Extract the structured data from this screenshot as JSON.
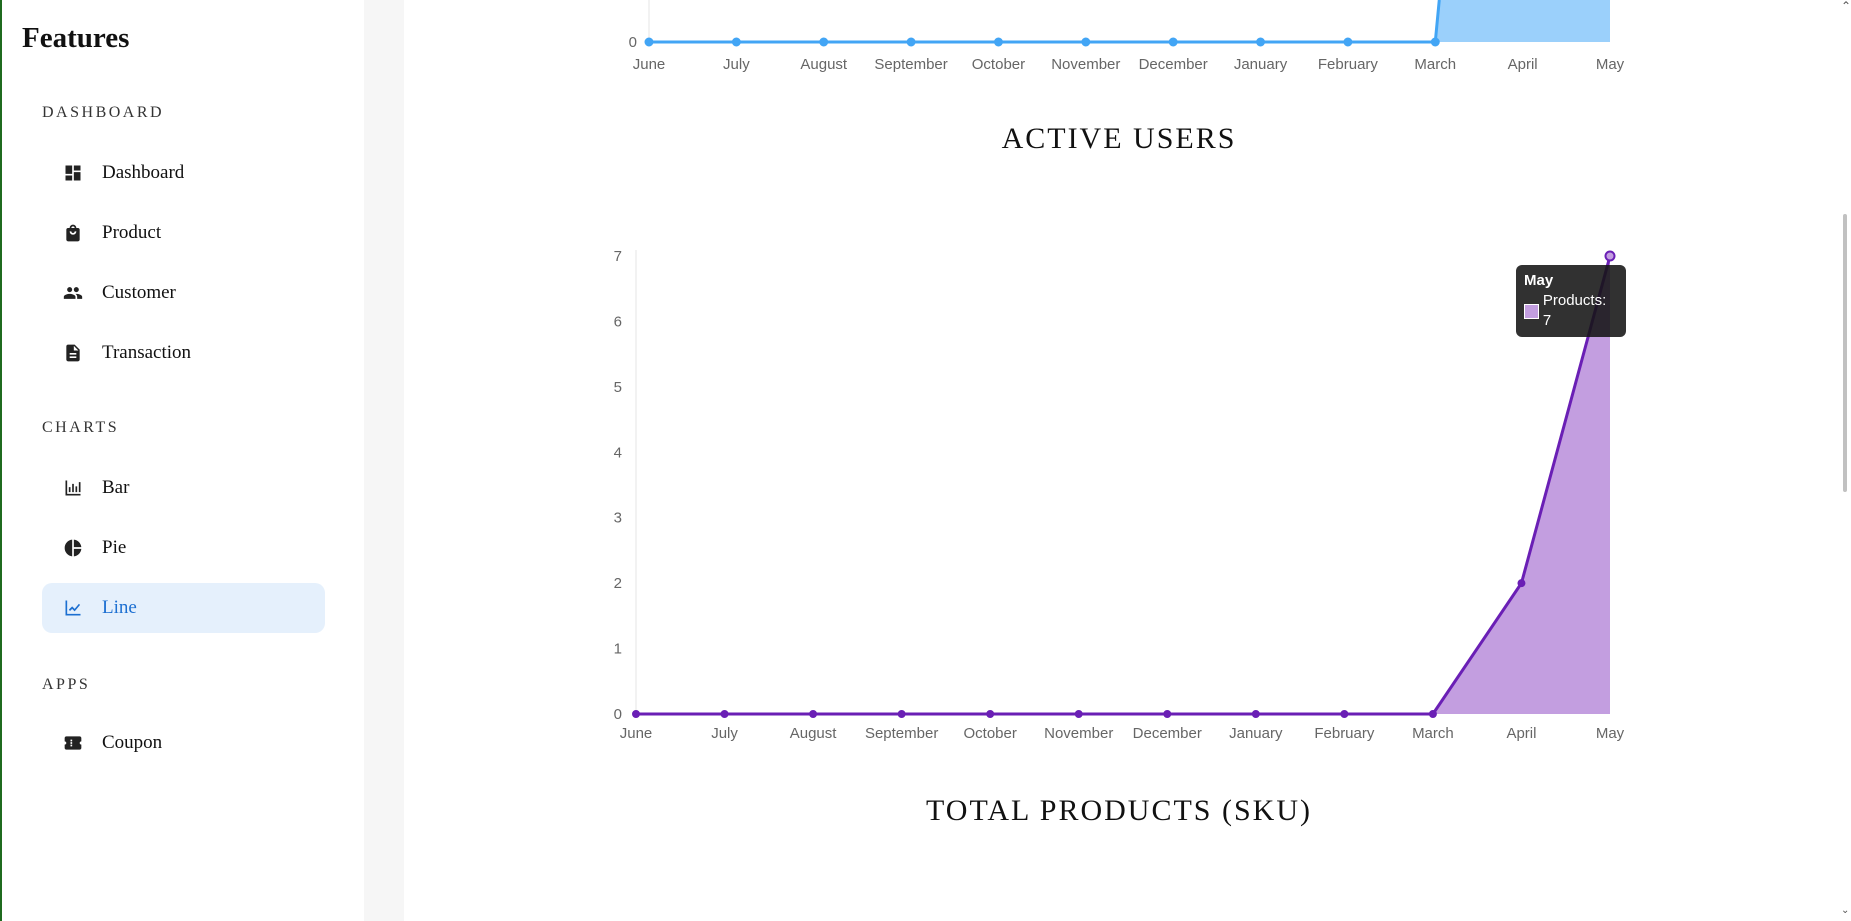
{
  "sidebar": {
    "brand": "Features",
    "sections": [
      {
        "label": "DASHBOARD",
        "items": [
          {
            "label": "Dashboard",
            "icon": "dashboard-icon"
          },
          {
            "label": "Product",
            "icon": "shopping-bag-icon"
          },
          {
            "label": "Customer",
            "icon": "people-icon"
          },
          {
            "label": "Transaction",
            "icon": "document-icon"
          }
        ]
      },
      {
        "label": "CHARTS",
        "items": [
          {
            "label": "Bar",
            "icon": "bar-chart-icon"
          },
          {
            "label": "Pie",
            "icon": "pie-chart-icon"
          },
          {
            "label": "Line",
            "icon": "line-chart-icon",
            "active": true
          }
        ]
      },
      {
        "label": "APPS",
        "items": [
          {
            "label": "Coupon",
            "icon": "coupon-icon"
          }
        ]
      }
    ],
    "active_color": "#1c6fd1",
    "active_bg": "#e5f0fc"
  },
  "main": {
    "titles": [
      "ACTIVE USERS",
      "TOTAL PRODUCTS (SKU)"
    ]
  },
  "tooltip": {
    "title": "May",
    "label": "Products: 7"
  },
  "chart_data": [
    {
      "type": "area",
      "title": "ACTIVE USERS",
      "categories": [
        "June",
        "July",
        "August",
        "September",
        "October",
        "November",
        "December",
        "January",
        "February",
        "March",
        "April",
        "May"
      ],
      "y_tick_visible": [
        "0"
      ],
      "series": [
        {
          "values": [
            0,
            0,
            0,
            0,
            0,
            0,
            0,
            0,
            0,
            0,
            null,
            null
          ],
          "color": "#42a5f5",
          "fill": "#9bd0fb"
        }
      ],
      "note_visible": "cropped at top; only y=0 tick visible"
    },
    {
      "type": "area",
      "title": "TOTAL PRODUCTS (SKU)",
      "categories": [
        "June",
        "July",
        "August",
        "September",
        "October",
        "November",
        "December",
        "January",
        "February",
        "March",
        "April",
        "May"
      ],
      "y_ticks": [
        "0",
        "1",
        "2",
        "3",
        "4",
        "5",
        "6",
        "7"
      ],
      "ylim": [
        0,
        7
      ],
      "series": [
        {
          "name": "Products",
          "values": [
            0,
            0,
            0,
            0,
            0,
            0,
            0,
            0,
            0,
            0,
            2,
            7
          ],
          "color": "#6a1fb5",
          "fill": "#c39ee0"
        }
      ]
    }
  ]
}
